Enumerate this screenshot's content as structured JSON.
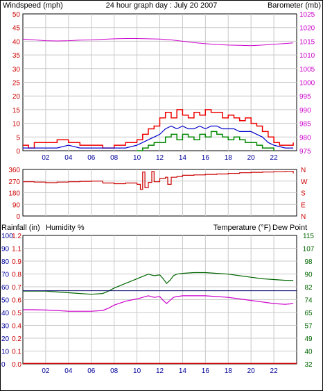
{
  "title": "24 hour graph day : July 20 2007",
  "colors": {
    "wind": "#cc0000",
    "gust": "#ee0000",
    "wind_avg": "#0000cc",
    "wind_green": "#008800",
    "barometer": "#cc00cc",
    "direction": "#cc0000",
    "temperature": "#006600",
    "dew_point": "#cc00cc",
    "humidity": "#000066",
    "rainfall": "#cc0000",
    "blue_axis": "#000099",
    "green_axis": "#006600",
    "grid": "#c8c8c8"
  },
  "x_axis": {
    "hour_labels": [
      "02",
      "04",
      "06",
      "08",
      "10",
      "12",
      "14",
      "16",
      "18",
      "20",
      "22"
    ],
    "range": [
      0,
      24
    ]
  },
  "chart_data": [
    {
      "type": "line",
      "name": "wind-barometer",
      "ylabel_left": "Windspeed (mph)",
      "ylabel_right": "Barometer (mb)",
      "ylim_left": [
        0,
        50
      ],
      "yticks_left": [
        "0",
        "5",
        "10",
        "15",
        "20",
        "25",
        "30",
        "35",
        "40",
        "45",
        "50"
      ],
      "ylim_right": [
        975,
        1025
      ],
      "yticks_right": [
        "975",
        "980",
        "985",
        "990",
        "995",
        "1000",
        "1005",
        "1010",
        "1015",
        "1020",
        "1025"
      ],
      "grid": true,
      "series": [
        {
          "role": "gust",
          "axis": "left",
          "x": [
            0,
            0.5,
            1,
            2,
            3,
            4,
            5,
            6,
            7,
            8,
            9,
            10,
            10.5,
            11,
            11.5,
            12,
            12.5,
            13,
            13.5,
            14,
            14.5,
            15,
            15.5,
            16,
            16.5,
            17,
            17.5,
            18,
            18.5,
            19,
            19.5,
            20,
            20.5,
            21,
            21.5,
            22,
            22.5,
            23,
            23.7
          ],
          "y": [
            2,
            1,
            3,
            3,
            4,
            3,
            2,
            2,
            1,
            2,
            3,
            4,
            6,
            8,
            9,
            12,
            14,
            12,
            15,
            13,
            12,
            14,
            13,
            15,
            14,
            14,
            12,
            13,
            12,
            11,
            12,
            10,
            9,
            7,
            5,
            3,
            2,
            2,
            3
          ]
        },
        {
          "role": "wind_avg",
          "axis": "left",
          "x": [
            0,
            1,
            2,
            3,
            4,
            5,
            6,
            7,
            8,
            9,
            10,
            10.5,
            11,
            11.5,
            12,
            12.5,
            13,
            13.5,
            14,
            14.5,
            15,
            15.5,
            16,
            16.5,
            17,
            17.5,
            18,
            18.5,
            19,
            19.5,
            20,
            20.5,
            21,
            21.5,
            22,
            23,
            23.7
          ],
          "y": [
            1,
            1,
            1,
            1,
            2,
            1,
            1,
            1,
            1,
            1,
            2,
            3,
            4,
            5,
            6,
            8,
            9,
            8,
            9,
            8,
            8,
            9,
            8,
            9,
            9,
            8,
            8,
            8,
            7,
            7,
            7,
            6,
            5,
            3,
            2,
            1,
            1
          ]
        },
        {
          "role": "wind_green",
          "axis": "left",
          "x": [
            10,
            10.5,
            11,
            11.5,
            12,
            12.5,
            13,
            13.5,
            14,
            14.5,
            15,
            15.5,
            16,
            16.5,
            17,
            17.5,
            18,
            18.5,
            19,
            19.5,
            20,
            20.5,
            21,
            21.5,
            22
          ],
          "y": [
            0,
            1,
            2,
            3,
            3,
            5,
            6,
            4,
            6,
            5,
            4,
            6,
            5,
            7,
            6,
            5,
            4,
            5,
            4,
            3,
            3,
            2,
            1,
            1,
            0
          ]
        },
        {
          "role": "barometer",
          "axis": "right",
          "x": [
            0,
            1,
            2,
            3,
            4,
            5,
            6,
            7,
            8,
            9,
            10,
            11,
            12,
            13,
            14,
            15,
            16,
            17,
            18,
            19,
            20,
            21,
            22,
            23,
            23.7
          ],
          "y": [
            1015.8,
            1015.5,
            1015.2,
            1015.1,
            1015.2,
            1015.4,
            1015.5,
            1015.7,
            1015.9,
            1016.0,
            1016.0,
            1015.9,
            1015.8,
            1015.5,
            1015.0,
            1014.5,
            1014.1,
            1013.8,
            1013.6,
            1013.5,
            1013.4,
            1013.6,
            1013.9,
            1014.2,
            1014.4
          ]
        }
      ]
    },
    {
      "type": "line",
      "name": "wind-direction",
      "ylim": [
        0,
        360
      ],
      "yticks_left": [
        "0",
        "90",
        "180",
        "270",
        "360"
      ],
      "yticks_right": [
        "N",
        "E",
        "S",
        "W",
        "N"
      ],
      "grid": true,
      "series": [
        {
          "role": "direction",
          "x": [
            0,
            1,
            2,
            3,
            4,
            5,
            6,
            7,
            8,
            9,
            10,
            10.3,
            10.5,
            10.7,
            11,
            11.3,
            11.5,
            12,
            12.5,
            12.7,
            13,
            13.5,
            14,
            15,
            16,
            17,
            18,
            19,
            20,
            21,
            22,
            23,
            23.7
          ],
          "y": [
            265,
            262,
            258,
            262,
            265,
            268,
            270,
            255,
            250,
            255,
            245,
            205,
            340,
            220,
            260,
            345,
            265,
            290,
            300,
            245,
            300,
            305,
            315,
            318,
            322,
            325,
            330,
            335,
            338,
            340,
            342,
            345,
            330
          ]
        }
      ]
    },
    {
      "type": "line",
      "name": "temperature-humidity-rain",
      "ylabel_left_1": "Rainfall (in)",
      "ylabel_left_2": "Humidity %",
      "ylabel_right_1": "Temperature (°F)",
      "ylabel_right_2": "Dew Point",
      "yticks_humidity": [
        "0",
        "10",
        "20",
        "30",
        "40",
        "50",
        "60",
        "70",
        "80",
        "90",
        "100"
      ],
      "yticks_rain": [
        "0.0",
        "0.1",
        "0.2",
        "0.4",
        "0.5",
        "0.6",
        "0.7",
        "0.8",
        "0.9",
        "1.1",
        "1.2"
      ],
      "ylim_temp": [
        32,
        115
      ],
      "yticks_temp": [
        "32",
        "40",
        "49",
        "57",
        "65",
        "74",
        "82",
        "90",
        "98",
        "107",
        "115"
      ],
      "grid": true,
      "series": [
        {
          "role": "temperature",
          "axis": "temp",
          "x": [
            0,
            1,
            2,
            3,
            4,
            5,
            6,
            7,
            7.5,
            8,
            9,
            10,
            10.5,
            11,
            11.5,
            12,
            12.3,
            12.6,
            12.9,
            13.2,
            13.5,
            14,
            15,
            16,
            17,
            18,
            19,
            20,
            21,
            22,
            23,
            23.7
          ],
          "y": [
            79,
            79,
            79,
            78.5,
            78,
            77.5,
            77,
            77.5,
            79,
            81,
            84,
            87,
            88.5,
            90,
            89,
            89.5,
            87,
            84,
            86,
            89,
            90,
            90.5,
            91,
            91,
            90.5,
            90,
            89,
            88,
            87,
            86.5,
            86,
            86
          ]
        },
        {
          "role": "dew_point",
          "axis": "temp",
          "x": [
            0,
            1,
            2,
            3,
            4,
            5,
            6,
            7,
            7.5,
            8,
            9,
            10,
            10.5,
            11,
            11.5,
            12,
            12.3,
            12.6,
            12.9,
            13.2,
            13.5,
            14,
            15,
            16,
            17,
            18,
            19,
            20,
            21,
            22,
            23,
            23.7
          ],
          "y": [
            67,
            67,
            66.8,
            66.5,
            66,
            66,
            66,
            66.5,
            68,
            70,
            72.5,
            74,
            75,
            76,
            75,
            75.5,
            73,
            71,
            73,
            75,
            75.5,
            76,
            76,
            76,
            75.5,
            75,
            74,
            73,
            72,
            71,
            70.5,
            71
          ]
        },
        {
          "role": "humidity",
          "axis": "humidity",
          "x": [
            0,
            24
          ],
          "y": [
            57,
            57
          ]
        },
        {
          "role": "rainfall",
          "axis": "humidity",
          "x": [
            0,
            24
          ],
          "y": [
            0.3,
            0.3
          ]
        }
      ]
    }
  ]
}
